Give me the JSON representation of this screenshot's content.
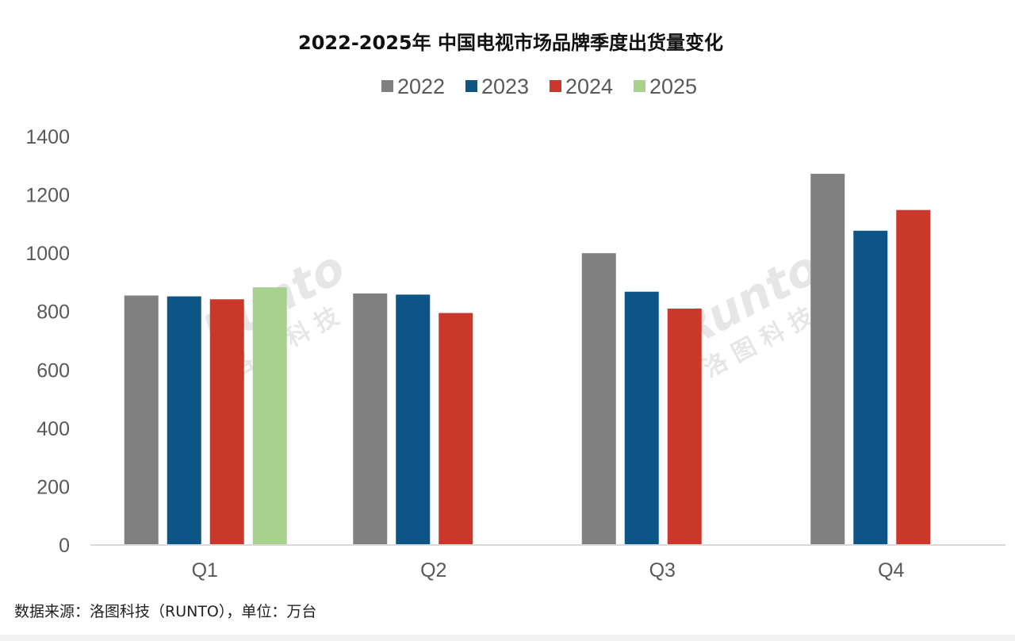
{
  "title": "2022-2025年 中国电视市场品牌季度出货量变化",
  "source_note": "数据来源：洛图科技（RUNTO），单位：万台",
  "watermark": {
    "latin": "Runto",
    "chinese": "洛 图 科 技"
  },
  "chart_data": {
    "type": "bar",
    "title": "2022-2025年 中国电视市场品牌季度出货量变化",
    "xlabel": "",
    "ylabel": "",
    "categories": [
      "Q1",
      "Q2",
      "Q3",
      "Q4"
    ],
    "ylim": [
      0,
      1400
    ],
    "yticks": [
      0,
      200,
      400,
      600,
      800,
      1000,
      1200,
      1400
    ],
    "grid": false,
    "legend_position": "top-center",
    "series": [
      {
        "name": "2022",
        "color": "#808080",
        "values": [
          855,
          862,
          1000,
          1272
        ]
      },
      {
        "name": "2023",
        "color": "#0d5586",
        "values": [
          852,
          858,
          868,
          1077
        ]
      },
      {
        "name": "2024",
        "color": "#c9382a",
        "values": [
          842,
          795,
          810,
          1148
        ]
      },
      {
        "name": "2025",
        "color": "#a9d18e",
        "values": [
          883,
          null,
          null,
          null
        ]
      }
    ]
  }
}
